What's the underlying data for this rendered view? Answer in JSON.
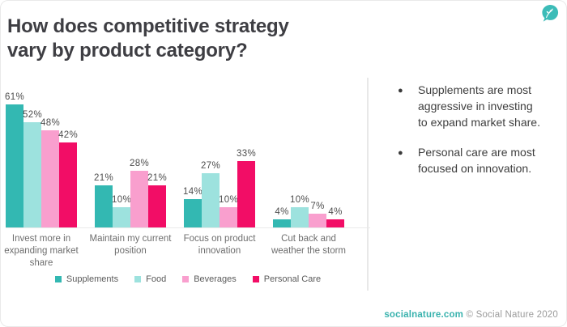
{
  "header": {
    "title": "How does competitive strategy vary by product category?"
  },
  "logo": {
    "name": "social-nature-leaf-logo",
    "color": "#3cbcb8"
  },
  "chart_data": {
    "type": "bar",
    "title": "",
    "categories": [
      "Invest more in expanding market share",
      "Maintain my current position",
      "Focus on product innovation",
      "Cut back and weather the storm"
    ],
    "series": [
      {
        "name": "Supplements",
        "color": "#33b8b2",
        "values": [
          61,
          21,
          14,
          4
        ]
      },
      {
        "name": "Food",
        "color": "#9de2de",
        "values": [
          52,
          10,
          27,
          10
        ]
      },
      {
        "name": "Beverages",
        "color": "#f99fce",
        "values": [
          48,
          28,
          10,
          7
        ]
      },
      {
        "name": "Personal Care",
        "color": "#f20d66",
        "values": [
          42,
          21,
          33,
          4
        ]
      }
    ],
    "value_suffix": "%",
    "ylim": [
      0,
      65
    ],
    "grid": false,
    "legend_position": "bottom"
  },
  "notes": {
    "bullets": [
      "Supplements are most aggressive in investing to expand market share.",
      "Personal care are most focused on innovation."
    ]
  },
  "footer": {
    "link": "socialnature.com",
    "copyright": "© Social Nature 2020"
  }
}
